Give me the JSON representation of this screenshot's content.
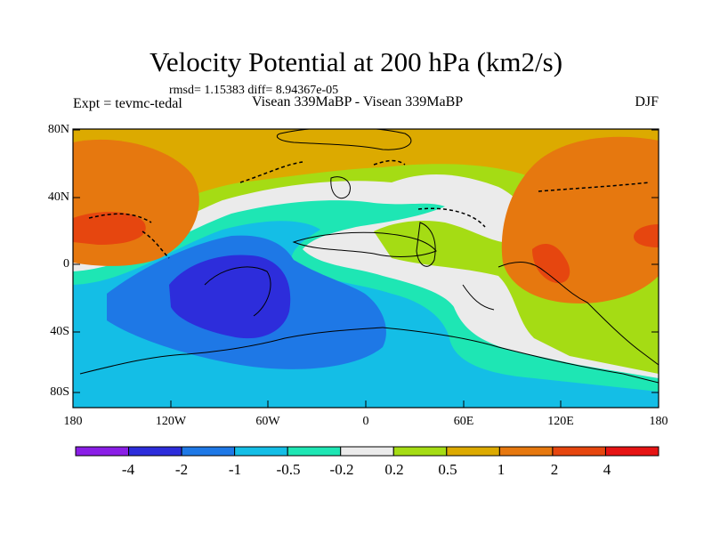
{
  "title": "Velocity Potential at 200 hPa (km2/s)",
  "stats_line": "rmsd= 1.15383 diff= 8.94367e-05",
  "left_label": "Expt = tevmc-tedal",
  "center_label": "Visean 339MaBP - Visean 339MaBP",
  "right_label": "DJF",
  "y_ticks": [
    "80N",
    "40N",
    "0",
    "40S",
    "80S"
  ],
  "x_ticks": [
    "180",
    "120W",
    "60W",
    "0",
    "60E",
    "120E",
    "180"
  ],
  "colorbar": {
    "colors": [
      "#8a1ee6",
      "#2d2ddb",
      "#1e78e6",
      "#14bee6",
      "#1ee6b4",
      "#ebebeb",
      "#a5dc14",
      "#dcaa00",
      "#e6780f",
      "#e6460f",
      "#e61414"
    ],
    "labels": [
      "-4",
      "-2",
      "-1",
      "-0.5",
      "-0.2",
      "0.2",
      "0.5",
      "1",
      "2",
      "4"
    ]
  }
}
